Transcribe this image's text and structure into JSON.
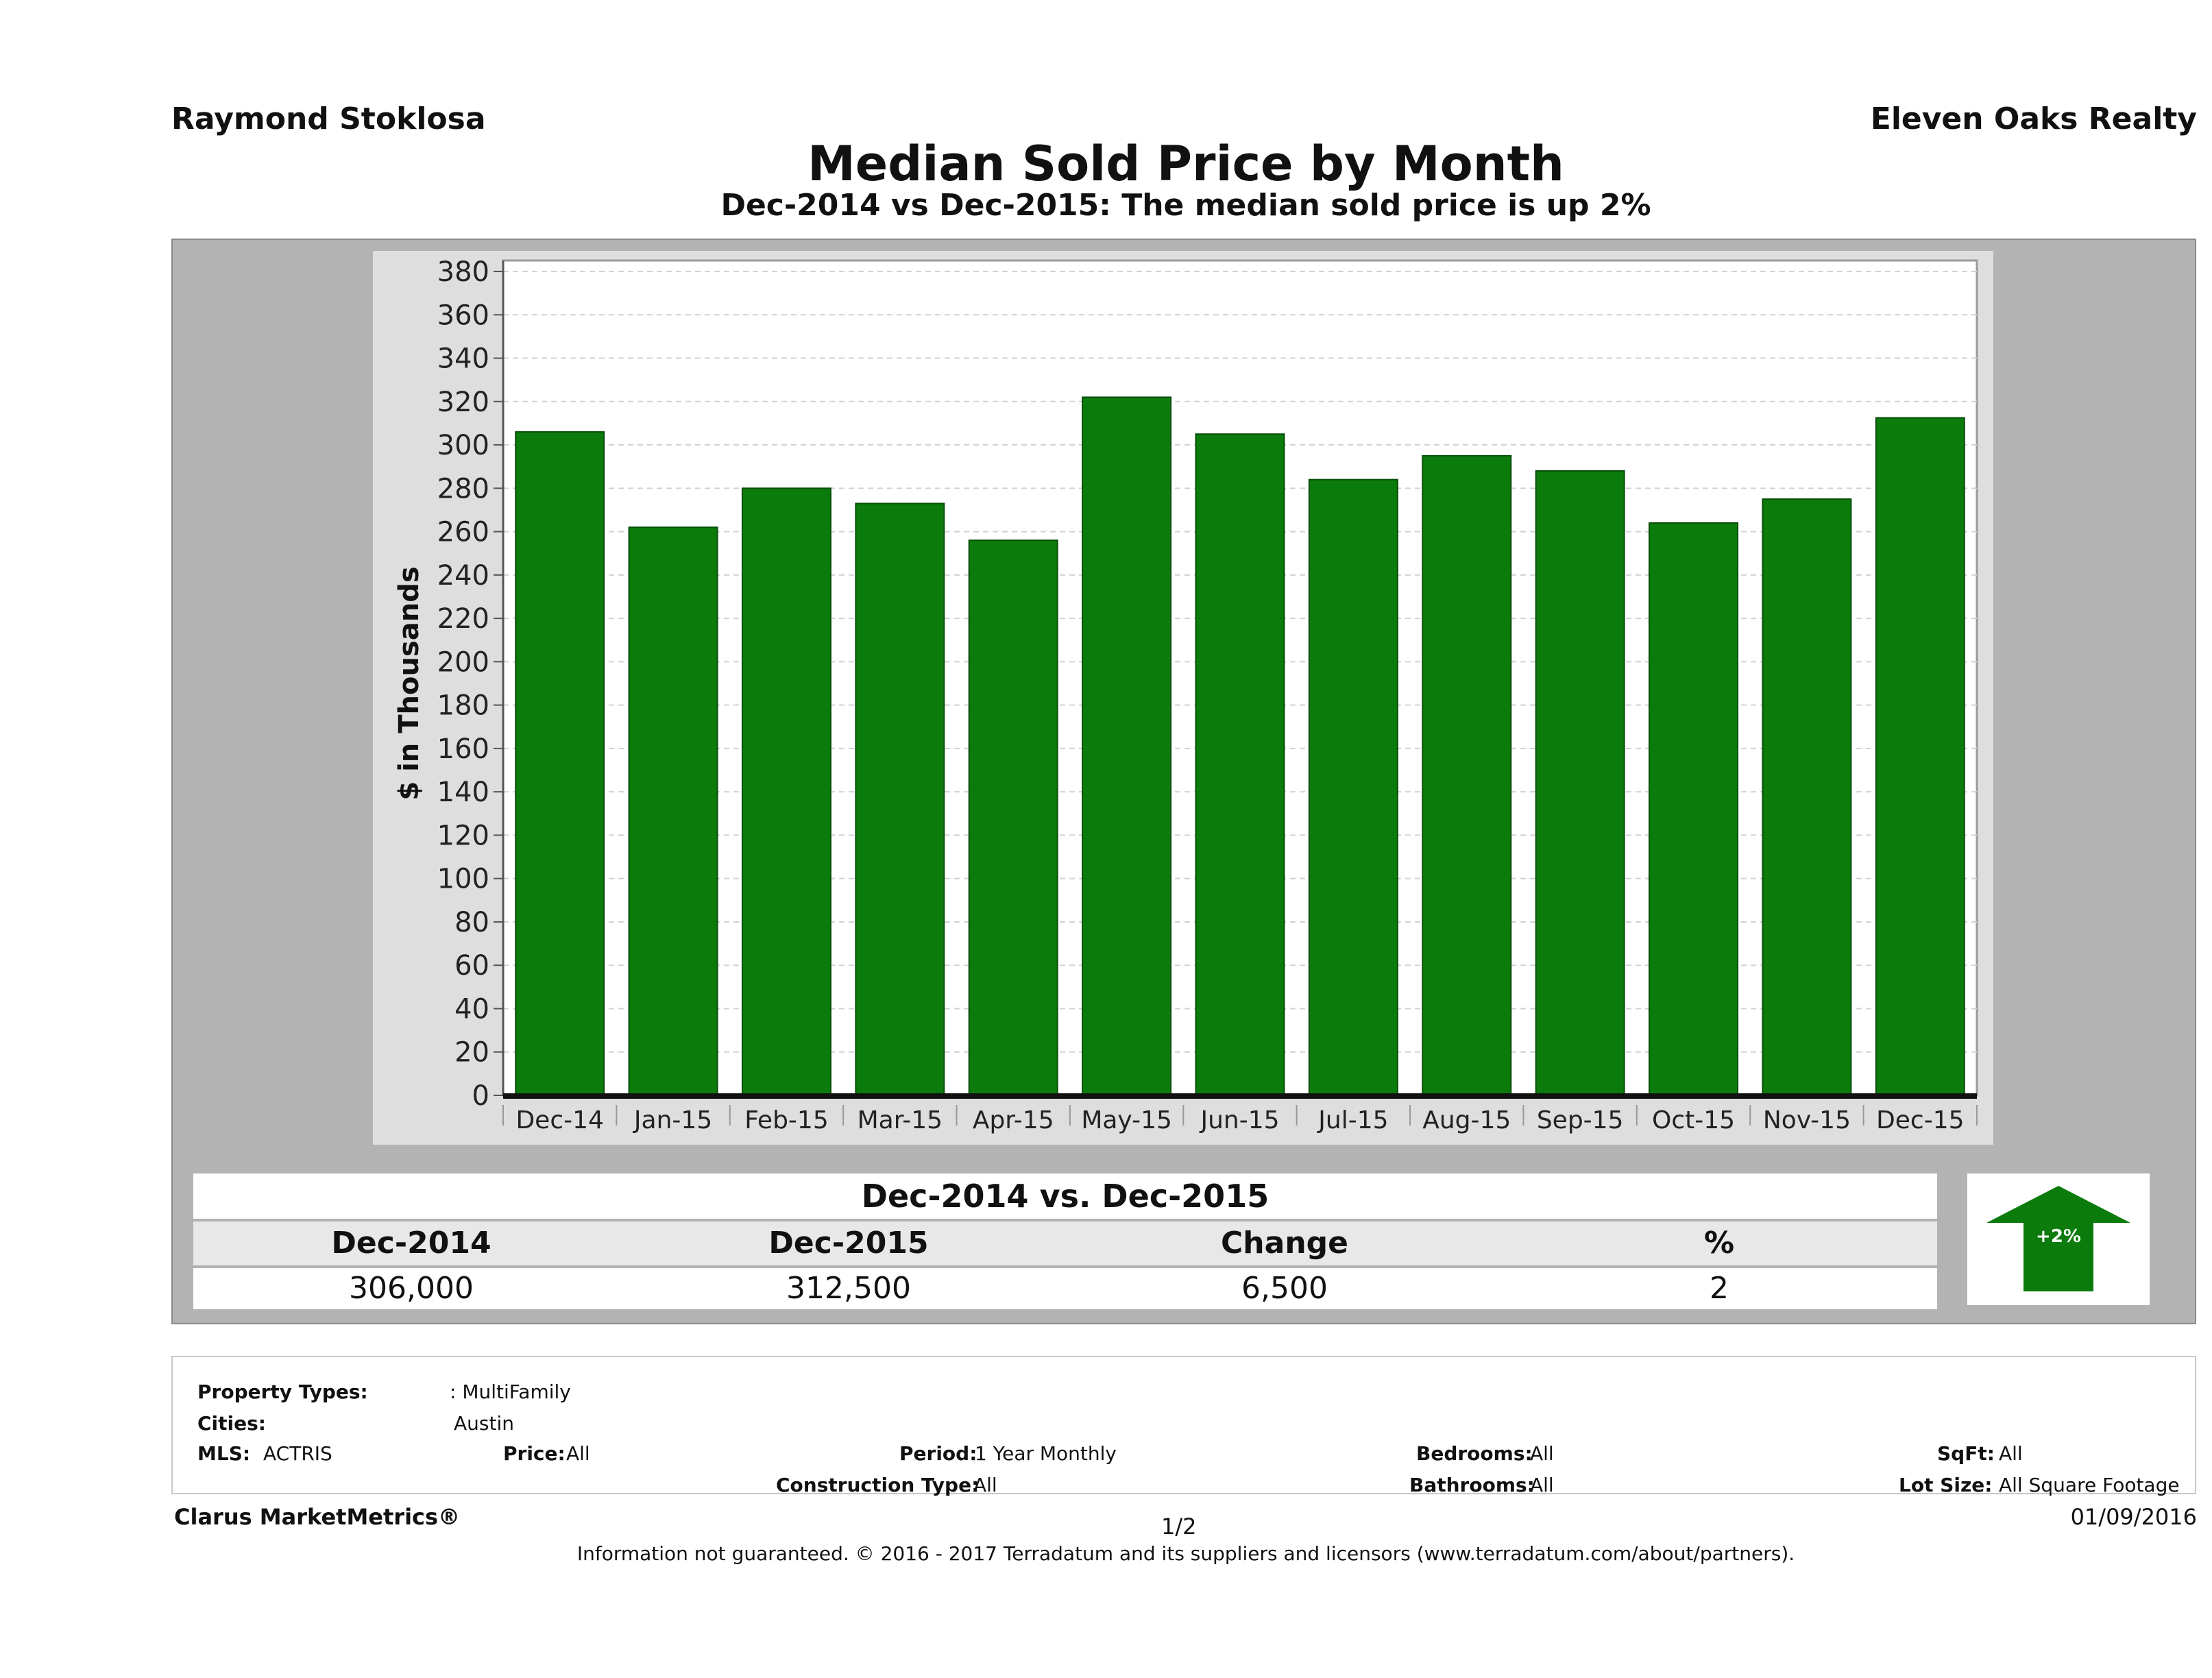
{
  "header": {
    "agent_name": "Raymond Stoklosa",
    "company_name": "Eleven Oaks Realty",
    "title": "Median Sold Price by Month",
    "subtitle": "Dec-2014 vs Dec-2015: The median sold price is up 2%"
  },
  "chart_data": {
    "type": "bar",
    "title": "Median Sold Price by Month",
    "xlabel": "",
    "ylabel": "$ in Thousands",
    "categories": [
      "Dec-14",
      "Jan-15",
      "Feb-15",
      "Mar-15",
      "Apr-15",
      "May-15",
      "Jun-15",
      "Jul-15",
      "Aug-15",
      "Sep-15",
      "Oct-15",
      "Nov-15",
      "Dec-15"
    ],
    "values": [
      306,
      262,
      280,
      273,
      256,
      322,
      305,
      284,
      295,
      288,
      264,
      275,
      312.5
    ],
    "ylim": [
      0,
      380
    ],
    "yticks": [
      0,
      20,
      40,
      60,
      80,
      100,
      120,
      140,
      160,
      180,
      200,
      220,
      240,
      260,
      280,
      300,
      320,
      340,
      360,
      380
    ],
    "grid": true,
    "bar_color": "#0b7b0b"
  },
  "summary": {
    "heading": "Dec-2014 vs. Dec-2015",
    "labels": [
      "Dec-2014",
      "Dec-2015",
      "Change",
      "%"
    ],
    "values": [
      "306,000",
      "312,500",
      "6,500",
      "2"
    ],
    "badge": "+2%",
    "badge_color": "#0b7b0b"
  },
  "filters": {
    "property_types_label": "Property Types:",
    "property_types_value": ": MultiFamily",
    "cities_label": "Cities:",
    "cities_value": "Austin",
    "mls_label": "MLS:",
    "mls_value": "ACTRIS",
    "price_label": "Price:",
    "price_value": "All",
    "period_label": "Period:",
    "period_value": "1 Year Monthly",
    "bedrooms_label": "Bedrooms:",
    "bedrooms_value": "All",
    "sqft_label": "SqFt:",
    "sqft_value": "All",
    "construction_label": "Construction Type:",
    "construction_value": "All",
    "bathrooms_label": "Bathrooms:",
    "bathrooms_value": "All",
    "lot_size_label": "Lot Size:",
    "lot_size_value": "All Square Footage"
  },
  "footer": {
    "brand": "Clarus MarketMetrics®",
    "page": "1/2",
    "date": "01/09/2016",
    "disclaimer": "Information not guaranteed. © 2016 - 2017 Terradatum and its suppliers and licensors (www.terradatum.com/about/partners)."
  }
}
